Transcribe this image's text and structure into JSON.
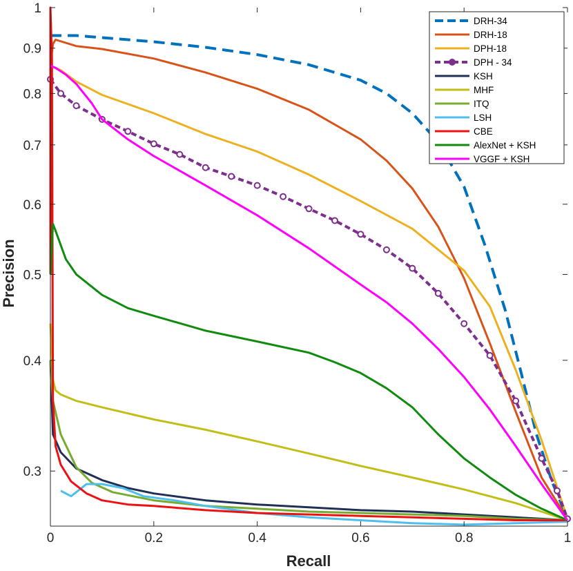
{
  "chart_data": {
    "type": "line",
    "title": "",
    "xlabel": "Recall",
    "ylabel": "Precision",
    "xlim": [
      0,
      1
    ],
    "ylim": [
      0.26,
      1
    ],
    "yscale": "log",
    "xticks": [
      0,
      0.2,
      0.4,
      0.6,
      0.8,
      1
    ],
    "xtick_labels": [
      "0",
      "0.2",
      "0.4",
      "0.6",
      "0.8",
      "1"
    ],
    "yticks": [
      0.3,
      0.4,
      0.5,
      0.6,
      0.7,
      0.8,
      0.9,
      1
    ],
    "ytick_labels": [
      "0.3",
      "0.4",
      "0.5",
      "0.6",
      "0.7",
      "0.8",
      "0.9",
      "1"
    ],
    "grid": false,
    "legend_position": "top-right",
    "series": [
      {
        "name": "DRH-34",
        "color": "#0072BD",
        "dash": "dashed",
        "marker": "none",
        "points": [
          [
            0,
            0.93
          ],
          [
            0.05,
            0.93
          ],
          [
            0.1,
            0.925
          ],
          [
            0.2,
            0.915
          ],
          [
            0.3,
            0.902
          ],
          [
            0.4,
            0.885
          ],
          [
            0.5,
            0.862
          ],
          [
            0.6,
            0.828
          ],
          [
            0.65,
            0.8
          ],
          [
            0.7,
            0.76
          ],
          [
            0.75,
            0.705
          ],
          [
            0.8,
            0.628
          ],
          [
            0.84,
            0.54
          ],
          [
            0.88,
            0.455
          ],
          [
            0.91,
            0.388
          ],
          [
            0.94,
            0.33
          ],
          [
            0.97,
            0.292
          ],
          [
            1.0,
            0.265
          ]
        ]
      },
      {
        "name": "DRH-18",
        "color": "#D95319",
        "dash": "solid",
        "marker": "none",
        "points": [
          [
            0,
            0.86
          ],
          [
            0.005,
            0.91
          ],
          [
            0.01,
            0.92
          ],
          [
            0.05,
            0.905
          ],
          [
            0.1,
            0.898
          ],
          [
            0.2,
            0.876
          ],
          [
            0.3,
            0.845
          ],
          [
            0.4,
            0.81
          ],
          [
            0.5,
            0.767
          ],
          [
            0.6,
            0.71
          ],
          [
            0.65,
            0.672
          ],
          [
            0.7,
            0.625
          ],
          [
            0.75,
            0.566
          ],
          [
            0.8,
            0.495
          ],
          [
            0.85,
            0.418
          ],
          [
            0.9,
            0.35
          ],
          [
            0.95,
            0.295
          ],
          [
            1.0,
            0.265
          ]
        ]
      },
      {
        "name": "DPH-18",
        "color": "#EDB120",
        "dash": "solid",
        "marker": "none",
        "points": [
          [
            0,
            0.86
          ],
          [
            0.02,
            0.85
          ],
          [
            0.05,
            0.825
          ],
          [
            0.1,
            0.797
          ],
          [
            0.2,
            0.76
          ],
          [
            0.3,
            0.72
          ],
          [
            0.4,
            0.688
          ],
          [
            0.5,
            0.648
          ],
          [
            0.6,
            0.605
          ],
          [
            0.7,
            0.563
          ],
          [
            0.8,
            0.505
          ],
          [
            0.85,
            0.46
          ],
          [
            0.9,
            0.39
          ],
          [
            0.95,
            0.325
          ],
          [
            1.0,
            0.265
          ]
        ]
      },
      {
        "name": "DPH - 34",
        "color": "#7E2F8E",
        "dash": "dashed",
        "marker": "circle",
        "points": [
          [
            0,
            0.83
          ],
          [
            0.02,
            0.8
          ],
          [
            0.05,
            0.775
          ],
          [
            0.1,
            0.748
          ],
          [
            0.15,
            0.725
          ],
          [
            0.2,
            0.702
          ],
          [
            0.25,
            0.683
          ],
          [
            0.3,
            0.66
          ],
          [
            0.35,
            0.645
          ],
          [
            0.4,
            0.63
          ],
          [
            0.45,
            0.612
          ],
          [
            0.5,
            0.593
          ],
          [
            0.55,
            0.575
          ],
          [
            0.6,
            0.555
          ],
          [
            0.65,
            0.533
          ],
          [
            0.7,
            0.508
          ],
          [
            0.75,
            0.476
          ],
          [
            0.8,
            0.44
          ],
          [
            0.85,
            0.405
          ],
          [
            0.9,
            0.36
          ],
          [
            0.95,
            0.31
          ],
          [
            0.98,
            0.285
          ],
          [
            1.0,
            0.265
          ]
        ]
      },
      {
        "name": "KSH",
        "color": "#1F2F56",
        "dash": "solid",
        "marker": "none",
        "points": [
          [
            0,
            0.4
          ],
          [
            0.005,
            0.33
          ],
          [
            0.02,
            0.315
          ],
          [
            0.05,
            0.302
          ],
          [
            0.1,
            0.293
          ],
          [
            0.15,
            0.287
          ],
          [
            0.2,
            0.283
          ],
          [
            0.3,
            0.278
          ],
          [
            0.4,
            0.275
          ],
          [
            0.5,
            0.273
          ],
          [
            0.6,
            0.271
          ],
          [
            0.7,
            0.27
          ],
          [
            0.8,
            0.268
          ],
          [
            0.9,
            0.266
          ],
          [
            1.0,
            0.264
          ]
        ]
      },
      {
        "name": "MHF",
        "color": "#C2BE18",
        "dash": "solid",
        "marker": "none",
        "points": [
          [
            0,
            0.44
          ],
          [
            0.005,
            0.38
          ],
          [
            0.01,
            0.37
          ],
          [
            0.02,
            0.366
          ],
          [
            0.05,
            0.36
          ],
          [
            0.1,
            0.354
          ],
          [
            0.2,
            0.343
          ],
          [
            0.3,
            0.334
          ],
          [
            0.4,
            0.324
          ],
          [
            0.5,
            0.314
          ],
          [
            0.6,
            0.304
          ],
          [
            0.7,
            0.295
          ],
          [
            0.8,
            0.286
          ],
          [
            0.9,
            0.276
          ],
          [
            0.95,
            0.27
          ],
          [
            1.0,
            0.264
          ]
        ]
      },
      {
        "name": "ITQ",
        "color": "#77AC30",
        "dash": "solid",
        "marker": "none",
        "points": [
          [
            0,
            0.4
          ],
          [
            0.005,
            0.36
          ],
          [
            0.02,
            0.33
          ],
          [
            0.05,
            0.303
          ],
          [
            0.08,
            0.291
          ],
          [
            0.12,
            0.284
          ],
          [
            0.2,
            0.278
          ],
          [
            0.3,
            0.274
          ],
          [
            0.4,
            0.272
          ],
          [
            0.5,
            0.27
          ],
          [
            0.6,
            0.269
          ],
          [
            0.7,
            0.268
          ],
          [
            0.8,
            0.267
          ],
          [
            0.9,
            0.265
          ],
          [
            1.0,
            0.264
          ]
        ]
      },
      {
        "name": "LSH",
        "color": "#4DBEEE",
        "dash": "solid",
        "marker": "none",
        "points": [
          [
            0.02,
            0.285
          ],
          [
            0.04,
            0.281
          ],
          [
            0.07,
            0.29
          ],
          [
            0.1,
            0.29
          ],
          [
            0.14,
            0.287
          ],
          [
            0.18,
            0.281
          ],
          [
            0.24,
            0.278
          ],
          [
            0.3,
            0.274
          ],
          [
            0.4,
            0.269
          ],
          [
            0.5,
            0.266
          ],
          [
            0.6,
            0.264
          ],
          [
            0.7,
            0.262
          ],
          [
            0.8,
            0.261
          ],
          [
            0.9,
            0.262
          ],
          [
            1.0,
            0.263
          ]
        ]
      },
      {
        "name": "CBE",
        "color": "#EE1111",
        "dash": "solid",
        "marker": "none",
        "points": [
          [
            0,
            0.5
          ],
          [
            0,
            1.0
          ],
          [
            0.003,
            0.88
          ],
          [
            0.005,
            0.36
          ],
          [
            0.01,
            0.32
          ],
          [
            0.02,
            0.305
          ],
          [
            0.04,
            0.292
          ],
          [
            0.07,
            0.283
          ],
          [
            0.1,
            0.278
          ],
          [
            0.15,
            0.275
          ],
          [
            0.2,
            0.274
          ],
          [
            0.3,
            0.271
          ],
          [
            0.4,
            0.269
          ],
          [
            0.5,
            0.268
          ],
          [
            0.6,
            0.267
          ],
          [
            0.7,
            0.266
          ],
          [
            0.8,
            0.265
          ],
          [
            0.9,
            0.264
          ],
          [
            1.0,
            0.264
          ]
        ]
      },
      {
        "name": "AlexNet + KSH",
        "color": "#0F8B0F",
        "dash": "solid",
        "marker": "none",
        "points": [
          [
            0,
            0.5
          ],
          [
            0.005,
            0.57
          ],
          [
            0.01,
            0.56
          ],
          [
            0.03,
            0.52
          ],
          [
            0.05,
            0.5
          ],
          [
            0.1,
            0.474
          ],
          [
            0.15,
            0.458
          ],
          [
            0.2,
            0.449
          ],
          [
            0.3,
            0.432
          ],
          [
            0.4,
            0.42
          ],
          [
            0.5,
            0.408
          ],
          [
            0.55,
            0.398
          ],
          [
            0.6,
            0.387
          ],
          [
            0.65,
            0.372
          ],
          [
            0.7,
            0.354
          ],
          [
            0.75,
            0.33
          ],
          [
            0.8,
            0.31
          ],
          [
            0.85,
            0.295
          ],
          [
            0.9,
            0.282
          ],
          [
            0.95,
            0.272
          ],
          [
            1.0,
            0.264
          ]
        ]
      },
      {
        "name": "VGGF + KSH",
        "color": "#FF00FF",
        "dash": "solid",
        "marker": "none",
        "points": [
          [
            0,
            0.86
          ],
          [
            0.01,
            0.855
          ],
          [
            0.03,
            0.84
          ],
          [
            0.05,
            0.82
          ],
          [
            0.08,
            0.78
          ],
          [
            0.1,
            0.748
          ],
          [
            0.15,
            0.71
          ],
          [
            0.2,
            0.68
          ],
          [
            0.3,
            0.63
          ],
          [
            0.4,
            0.583
          ],
          [
            0.5,
            0.535
          ],
          [
            0.6,
            0.487
          ],
          [
            0.65,
            0.465
          ],
          [
            0.7,
            0.44
          ],
          [
            0.75,
            0.412
          ],
          [
            0.8,
            0.383
          ],
          [
            0.85,
            0.352
          ],
          [
            0.9,
            0.32
          ],
          [
            0.95,
            0.29
          ],
          [
            1.0,
            0.264
          ]
        ]
      }
    ]
  }
}
